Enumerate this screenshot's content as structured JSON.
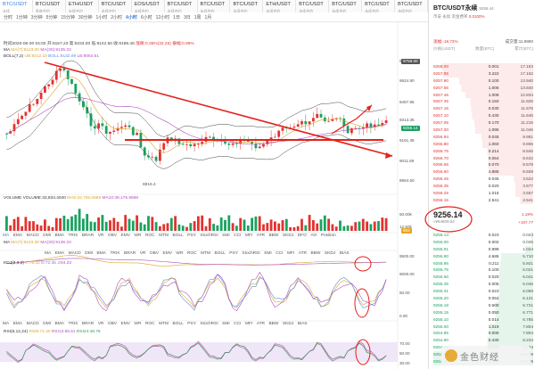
{
  "tabs": [
    {
      "name": "BTC/USDT",
      "sub": "永续",
      "active": true
    },
    {
      "name": "BTC/USDT",
      "sub": "季度合约"
    },
    {
      "name": "ETH/USDT",
      "sub": "永续合约"
    },
    {
      "name": "BTC/USDT",
      "sub": "永续合约"
    },
    {
      "name": "EOS/USDT",
      "sub": "永续合约"
    },
    {
      "name": "BTC/USDT",
      "sub": "永续合约"
    },
    {
      "name": "BTC/USDT",
      "sub": "永续合约"
    },
    {
      "name": "BTC/USDT",
      "sub": "永续合约"
    },
    {
      "name": "ETH/USDT",
      "sub": "永续合约"
    },
    {
      "name": "BTC/USDT",
      "sub": "永续合约"
    },
    {
      "name": "BTC/USDT",
      "sub": "永续合约"
    },
    {
      "name": "BTC/USDT",
      "sub": "永续合约"
    },
    {
      "name": "BTC/USDT",
      "sub": "永续合约"
    }
  ],
  "timeframes": [
    "分时",
    "1分钟",
    "3分钟",
    "5分钟",
    "15分钟",
    "30分钟",
    "1小时",
    "2小时",
    "4小时",
    "6小时",
    "12小时",
    "1日",
    "3日",
    "1周",
    "1月"
  ],
  "active_timeframe": "4小时",
  "infobar": {
    "time": "时间2020-06-30 04:00",
    "open": "开:9157.23",
    "high": "高:9233.00",
    "low": "低:9142.50",
    "close": "收:9189.48",
    "change": "涨跌:0.35%(32.25)",
    "amp": "振幅:0.99%"
  },
  "ma_line": {
    "label": "MA",
    "ma7": "MA(7):9123.30",
    "ma30": "MA(30):9135.33"
  },
  "boll_line": {
    "label": "BOLL(7,2)",
    "ub": "UB:9212.10",
    "boll": "BOLL:9132.09",
    "lb": "LB:9054.51"
  },
  "price_axis": [
    "9758.00",
    "9624.90",
    "9467.85",
    "9313.35",
    "9161.38",
    "9011.89",
    "8864.50"
  ],
  "price_tags": {
    "current": "9256.14",
    "high_tag": "9758.00",
    "level": "9161.38"
  },
  "low_label": "8816.4",
  "volume_line": {
    "label": "VOLUME",
    "vol": "VOLUME:33,834.4040",
    "ma5": "MA5:32,755.0669",
    "ma10": "MA10:39,176.8688"
  },
  "volume_axis": [
    "50.00k",
    "12.50k"
  ],
  "volume_tag": "904",
  "toolbar": [
    "MA",
    "EMA",
    "MACD",
    "DMI",
    "BMA",
    "TRIX",
    "BRAR",
    "VR",
    "OBV",
    "EMV",
    "WR",
    "ROC",
    "MTM",
    "BOLL",
    "PSY",
    "StochRSI",
    "SMI",
    "CCI",
    "MFI",
    "ATR",
    "BBW",
    "SKDJ",
    "DFO",
    "AO",
    "Position"
  ],
  "toolbar_short": [
    "MA",
    "EMA",
    "MACD",
    "DMI",
    "BMA",
    "TRIX",
    "BRAR",
    "VR",
    "OBV",
    "EMV",
    "WR",
    "ROC",
    "MTM",
    "BOLL",
    "PSY",
    "StochRSI",
    "SMI",
    "CCI",
    "MFI",
    "ATR",
    "BBW",
    "SKDJ",
    "BIAS"
  ],
  "ma_panel": {
    "label": "MA",
    "ma7": "MA(7):9123.30",
    "ma30": "MA(30):9135.33",
    "axis": [
      "9500.00",
      "9000.00"
    ]
  },
  "kdj_panel": {
    "label": "KDJ(9,3,3)",
    "k": "K:76.32",
    "d": "D:72.35",
    "j": "J:84.23",
    "axis": [
      "50.00",
      "0.00"
    ]
  },
  "rsi_panel": {
    "label": "RSI(6,12,24)",
    "r6": "RSI6:71.20",
    "r12": "RSI12:55.51",
    "r24": "RSI24:48.76",
    "axis": [
      "70.00",
      "50.00",
      "30.00"
    ]
  },
  "orderbook": {
    "pair": "BTC/USDT永续",
    "pair_sub": "币安 永续",
    "price": "9256.44",
    "funding": "资金费率",
    "funding_val": "0.0100%",
    "meta_left": "涨幅:-18.72%",
    "meta_right": "成交量:11.9890",
    "cols": [
      "价格(USDT)",
      "数量(BTC)",
      "累计(BTC)"
    ],
    "asks": [
      {
        "p": "9258.00",
        "a": "0.001",
        "t": "17.163",
        "w": "92%"
      },
      {
        "p": "9257.95",
        "a": "3.222",
        "t": "17.162",
        "w": "90%"
      },
      {
        "p": "9257.90",
        "a": "0.100",
        "t": "13.940",
        "w": "74%"
      },
      {
        "p": "9257.56",
        "a": "1.006",
        "t": "13.840",
        "w": "72%"
      },
      {
        "p": "9257.46",
        "a": "1.008",
        "t": "12.834",
        "w": "68%"
      },
      {
        "p": "9257.35",
        "a": "0.150",
        "t": "11.826",
        "w": "63%"
      },
      {
        "p": "9257.15",
        "a": "0.030",
        "t": "11.676",
        "w": "62%"
      },
      {
        "p": "9257.10",
        "a": "0.430",
        "t": "11.646",
        "w": "61%"
      },
      {
        "p": "9257.05",
        "a": "0.170",
        "t": "11.216",
        "w": "59%"
      },
      {
        "p": "9257.00",
        "a": "1.095",
        "t": "11.046",
        "w": "58%"
      },
      {
        "p": "9256.94",
        "a": "0.045",
        "t": "9.951",
        "w": "52%"
      },
      {
        "p": "9256.80",
        "a": "1.060",
        "t": "9.906",
        "w": "51%"
      },
      {
        "p": "9256.75",
        "a": "0.214",
        "t": "8.846",
        "w": "46%"
      },
      {
        "p": "9256.70",
        "a": "0.054",
        "t": "8.632",
        "w": "45%"
      },
      {
        "p": "9256.65",
        "a": "0.070",
        "t": "8.578",
        "w": "45%"
      },
      {
        "p": "9256.60",
        "a": "4.886",
        "t": "8.508",
        "w": "44%"
      },
      {
        "p": "9256.45",
        "a": "0.045",
        "t": "3.622",
        "w": "19%"
      },
      {
        "p": "9256.35",
        "a": "0.020",
        "t": "3.577",
        "w": "18%"
      },
      {
        "p": "9256.25",
        "a": "1.016",
        "t": "3.557",
        "w": "18%"
      },
      {
        "p": "9256.15",
        "a": "2.541",
        "t": "2.541",
        "w": "13%"
      }
    ],
    "mid_price": "9256.14",
    "mid_sub": "≈¥64809.64",
    "mid_pct": "1.18%",
    "mid_chg": "+107.77",
    "bids": [
      {
        "p": "9256.13",
        "a": "0.023",
        "t": "0.023",
        "w": "2%"
      },
      {
        "p": "9256.00",
        "a": "0.002",
        "t": "0.025",
        "w": "2%"
      },
      {
        "p": "9255.91",
        "a": "0.999",
        "t": "1.024",
        "w": "8%"
      },
      {
        "p": "9255.90",
        "a": "4.686",
        "t": "5.710",
        "w": "32%"
      },
      {
        "p": "9255.86",
        "a": "0.211",
        "t": "5.921",
        "w": "33%"
      },
      {
        "p": "9255.75",
        "a": "0.100",
        "t": "6.021",
        "w": "34%"
      },
      {
        "p": "9255.50",
        "a": "0.020",
        "t": "6.041",
        "w": "34%"
      },
      {
        "p": "9255.35",
        "a": "0.005",
        "t": "6.046",
        "w": "34%"
      },
      {
        "p": "9255.31",
        "a": "0.023",
        "t": "6.069",
        "w": "34%"
      },
      {
        "p": "9255.20",
        "a": "0.052",
        "t": "6.121",
        "w": "35%"
      },
      {
        "p": "9255.18",
        "a": "0.600",
        "t": "6.721",
        "w": "38%"
      },
      {
        "p": "9255.15",
        "a": "0.050",
        "t": "6.771",
        "w": "38%"
      },
      {
        "p": "9255.10",
        "a": "0.014",
        "t": "6.785",
        "w": "38%"
      },
      {
        "p": "9255.00",
        "a": "1.019",
        "t": "7.804",
        "w": "44%"
      },
      {
        "p": "9254.95",
        "a": "0.000",
        "t": "7.804",
        "w": "44%"
      },
      {
        "p": "9254.90",
        "a": "0.430",
        "t": "8.234",
        "w": "46%"
      },
      {
        "p": "9254.85",
        "a": "0.000",
        "t": "8.234",
        "w": "46%"
      },
      {
        "p": "9254.83",
        "a": "11.345",
        "t": "19.579",
        "w": "100%"
      },
      {
        "p": "9254.80",
        "a": "0.100",
        "t": "19.679",
        "w": "100%"
      }
    ]
  },
  "watermark": "金色财经",
  "colors": {
    "up": "#e3322f",
    "down": "#1aa260",
    "accent": "#3a7bd5",
    "annotation": "#e5201b"
  }
}
